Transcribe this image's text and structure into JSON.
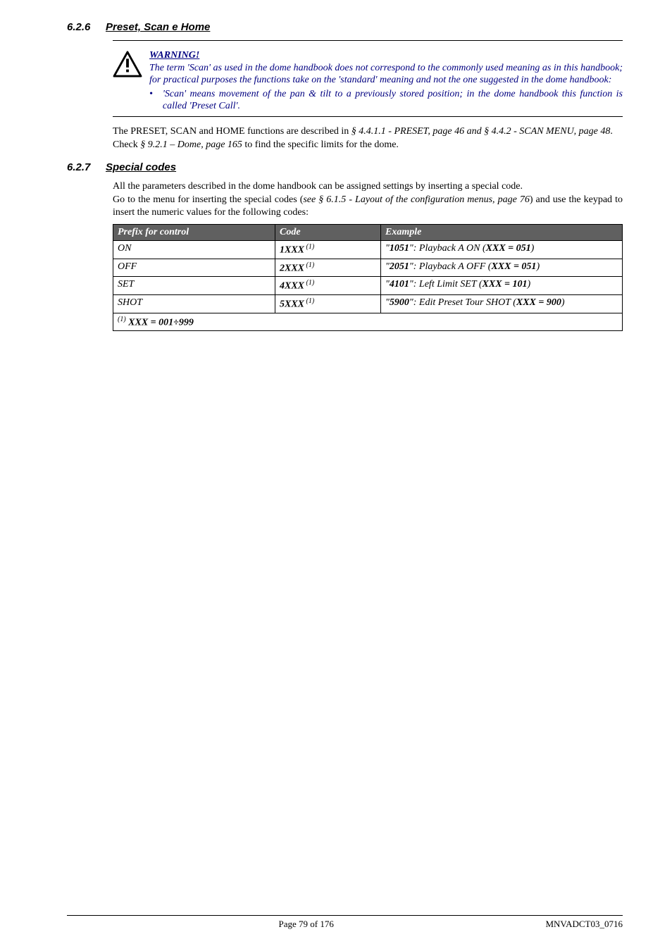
{
  "section626": {
    "num": "6.2.6",
    "title": "Preset, Scan e Home"
  },
  "warning": {
    "title": "WARNING!",
    "body": "The term 'Scan' as used in the dome handbook does not correspond to the commonly used meaning as in this handbook; for practical purposes the functions take on the 'standard' meaning and not the one suggested in the dome handbook:",
    "bullet": "'Scan' means movement of the pan & tilt to a previously stored position; in the dome handbook this function is called 'Preset Call'."
  },
  "para1_a": "The PRESET, SCAN and HOME functions are described in ",
  "para1_b": "§ 4.4.1.1 - PRESET, page 46 and § 4.4.2 - SCAN MENU, page 48",
  "para1_c": ".",
  "para2_a": "Check ",
  "para2_b": "§ 9.2.1 – Dome, page 165",
  "para2_c": " to find the specific limits for the dome.",
  "section627": {
    "num": "6.2.7",
    "title": "Special codes"
  },
  "para3": "All the parameters described in the dome handbook can be assigned settings by inserting a special code.",
  "para4_a": "Go to the menu for inserting the special codes (",
  "para4_b": "see § 6.1.5 - Layout of the configuration menus, page 76",
  "para4_c": ") and use the keypad to insert the numeric values for the following codes:",
  "table": {
    "headers": {
      "prefix": "Prefix for control",
      "code": "Code",
      "example": "Example"
    },
    "rows": [
      {
        "prefix": "ON",
        "code_b": "1XXX",
        "code_s": " (1)",
        "ex_q": "\"",
        "ex_b": "1051",
        "ex_mid": "\": Playback A ON (",
        "ex_b2": "XXX = 051",
        "ex_end": ")"
      },
      {
        "prefix": "OFF",
        "code_b": "2XXX",
        "code_s": " (1)",
        "ex_q": "\"",
        "ex_b": "2051",
        "ex_mid": "\": Playback A OFF (",
        "ex_b2": "XXX = 051",
        "ex_end": ")"
      },
      {
        "prefix": "SET",
        "code_b": "4XXX",
        "code_s": " (1)",
        "ex_q": "\"",
        "ex_b": "4101",
        "ex_mid": "\": Left Limit SET (",
        "ex_b2": "XXX = 101",
        "ex_end": ")"
      },
      {
        "prefix": "SHOT",
        "code_b": "5XXX",
        "code_s": " (1)",
        "ex_q": "\"",
        "ex_b": "5900",
        "ex_mid": "\": Edit Preset Tour SHOT (",
        "ex_b2": "XXX = 900",
        "ex_end": ")"
      }
    ],
    "footnote_sup": "(1)",
    "footnote_txt": "  XXX = 001÷999"
  },
  "footer": {
    "center": "Page 79 of 176",
    "right": "MNVADCT03_0716"
  }
}
